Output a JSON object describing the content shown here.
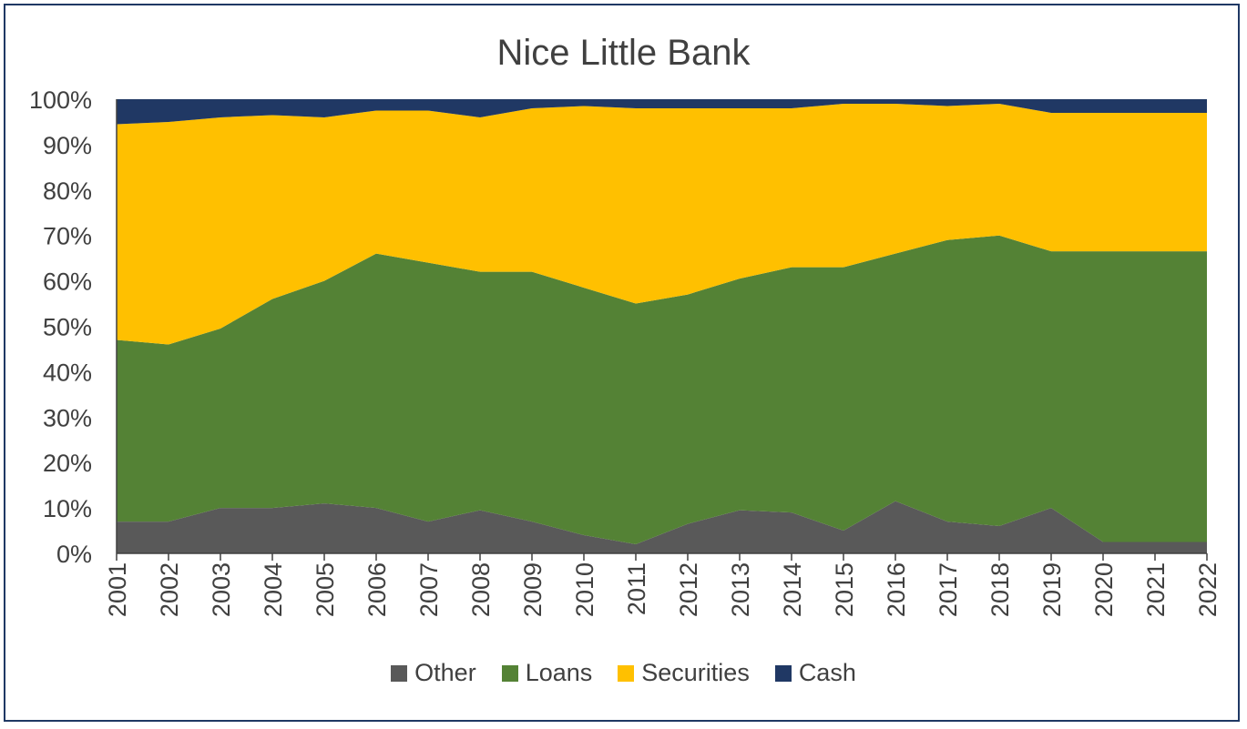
{
  "chart_data": {
    "type": "area",
    "stacked": "percent",
    "title": "Nice Little Bank",
    "xlabel": "",
    "ylabel": "",
    "ylim": [
      0,
      100
    ],
    "y_ticks": [
      "0%",
      "10%",
      "20%",
      "30%",
      "40%",
      "50%",
      "60%",
      "70%",
      "80%",
      "90%",
      "100%"
    ],
    "x": [
      "2001",
      "2002",
      "2003",
      "2004",
      "2005",
      "2006",
      "2007",
      "2008",
      "2009",
      "2010",
      "2011",
      "2012",
      "2013",
      "2014",
      "2015",
      "2016",
      "2017",
      "2018",
      "2019",
      "2020",
      "2021",
      "2022"
    ],
    "series": [
      {
        "name": "Other",
        "color": "#595959",
        "values": [
          7.0,
          7.0,
          10.0,
          10.0,
          11.0,
          10.0,
          7.0,
          9.5,
          7.0,
          4.0,
          2.0,
          6.5,
          9.5,
          9.0,
          5.0,
          11.5,
          7.0,
          6.0,
          10.0,
          2.5,
          2.5,
          2.5
        ]
      },
      {
        "name": "Loans",
        "color": "#548235",
        "values": [
          40.0,
          39.0,
          39.5,
          46.0,
          49.0,
          56.0,
          57.0,
          52.5,
          55.0,
          54.5,
          53.0,
          50.5,
          51.0,
          54.0,
          58.0,
          54.5,
          62.0,
          64.0,
          56.5,
          64.0,
          64.0,
          64.0
        ]
      },
      {
        "name": "Securities",
        "color": "#ffc000",
        "values": [
          47.5,
          49.0,
          46.5,
          40.5,
          36.0,
          31.5,
          33.5,
          34.0,
          36.0,
          40.0,
          43.0,
          41.0,
          37.5,
          35.0,
          36.0,
          33.0,
          29.5,
          29.0,
          30.5,
          30.5,
          30.5,
          30.5
        ]
      },
      {
        "name": "Cash",
        "color": "#203864",
        "values": [
          5.5,
          5.0,
          4.0,
          3.5,
          4.0,
          2.5,
          2.5,
          4.0,
          2.0,
          1.5,
          2.0,
          2.0,
          2.0,
          2.0,
          1.0,
          1.0,
          1.5,
          1.0,
          3.0,
          3.0,
          3.0,
          3.0
        ]
      }
    ],
    "grid": false,
    "legend_position": "bottom"
  }
}
